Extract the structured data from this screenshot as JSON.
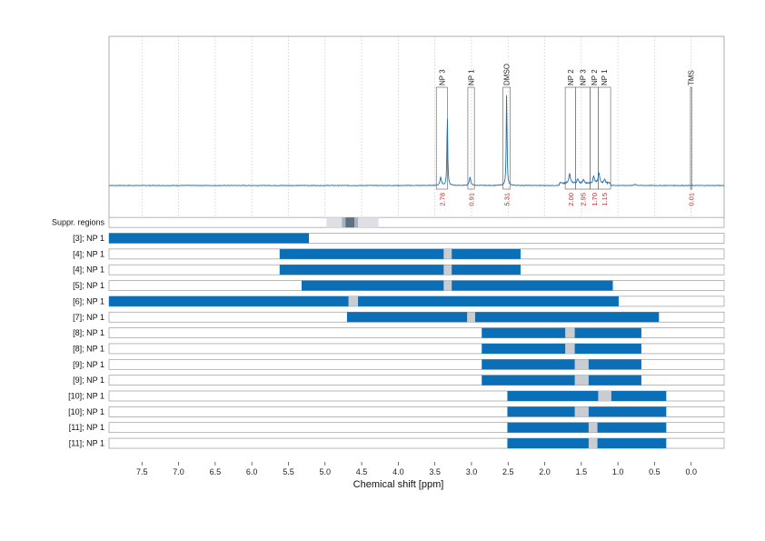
{
  "chart_data": {
    "type": "nmr-spectrum-with-range-bars",
    "xlabel": "Chemical shift [ppm]",
    "xlim": [
      7.95,
      -0.45
    ],
    "x_reversed": true,
    "x_ticks": [
      "7.5",
      "7.0",
      "6.5",
      "6.0",
      "5.5",
      "5.0",
      "4.5",
      "4.0",
      "3.5",
      "3.0",
      "2.5",
      "2.0",
      "1.5",
      "1.0",
      "0.5",
      "0.0"
    ],
    "x_tick_values": [
      7.5,
      7.0,
      6.5,
      6.0,
      5.5,
      5.0,
      4.5,
      4.0,
      3.5,
      3.0,
      2.5,
      2.0,
      1.5,
      1.0,
      0.5,
      0.0
    ],
    "grid": true,
    "colors": {
      "spectrum": "#1f6eb0",
      "bar": "#0b6fb8",
      "suppressed": "#c9ccd1",
      "integral": "#d9201f",
      "frame": "#9a9a9a"
    },
    "spectrum_peaks": [
      {
        "ppm": 3.33,
        "height": 0.55
      },
      {
        "ppm": 3.42,
        "height": 0.06
      },
      {
        "ppm": 3.02,
        "height": 0.06
      },
      {
        "ppm": 2.52,
        "height": 0.73
      },
      {
        "ppm": 1.66,
        "height": 0.07
      },
      {
        "ppm": 1.55,
        "height": 0.03
      },
      {
        "ppm": 1.47,
        "height": 0.03
      },
      {
        "ppm": 1.33,
        "height": 0.05
      },
      {
        "ppm": 1.26,
        "height": 0.08
      },
      {
        "ppm": 1.18,
        "height": 0.03
      },
      {
        "ppm": 0.76,
        "height": 0.01
      }
    ],
    "peak_annotations": [
      {
        "label": "NP 3",
        "ppm_start": 3.48,
        "ppm_end": 3.33,
        "integral": "2.78"
      },
      {
        "label": "NP 1",
        "ppm_start": 3.05,
        "ppm_end": 2.96,
        "integral": "0.91"
      },
      {
        "label": "DMSO",
        "ppm_start": 2.57,
        "ppm_end": 2.47,
        "integral": "5.31"
      },
      {
        "label": "NP 2",
        "ppm_start": 1.72,
        "ppm_end": 1.58,
        "integral": "2.00"
      },
      {
        "label": "NP 3",
        "ppm_start": 1.58,
        "ppm_end": 1.38,
        "integral": "2.95"
      },
      {
        "label": "NP 2",
        "ppm_start": 1.38,
        "ppm_end": 1.27,
        "integral": "1.70"
      },
      {
        "label": "NP 1",
        "ppm_start": 1.27,
        "ppm_end": 1.1,
        "integral": "1.15"
      },
      {
        "label": "TMS",
        "ppm_start": 0.01,
        "ppm_end": -0.01,
        "integral": "0.01"
      }
    ],
    "suppressed_regions": {
      "label": "Suppr. regions",
      "outer": [
        4.98,
        4.27
      ],
      "inner": [
        4.77,
        4.55
      ],
      "core": [
        4.72,
        4.6
      ]
    },
    "rows": [
      {
        "label": "[3]; NP 1",
        "range": [
          7.95,
          5.22
        ],
        "gaps": []
      },
      {
        "label": "[4]; NP 1",
        "range": [
          5.62,
          2.33
        ],
        "gaps": [
          [
            3.38,
            3.27
          ]
        ]
      },
      {
        "label": "[4]; NP 1",
        "range": [
          5.62,
          2.33
        ],
        "gaps": [
          [
            3.38,
            3.27
          ]
        ]
      },
      {
        "label": "[5]; NP 1",
        "range": [
          5.32,
          1.07
        ],
        "gaps": [
          [
            3.38,
            3.27
          ]
        ]
      },
      {
        "label": "[6]; NP 1",
        "range": [
          7.95,
          0.99
        ],
        "gaps": [
          [
            4.68,
            4.55
          ]
        ]
      },
      {
        "label": "[7]; NP 1",
        "range": [
          4.7,
          0.44
        ],
        "gaps": [
          [
            3.06,
            2.95
          ]
        ]
      },
      {
        "label": "[8]; NP 1",
        "range": [
          2.86,
          0.68
        ],
        "gaps": [
          [
            1.72,
            1.59
          ]
        ]
      },
      {
        "label": "[8]; NP 1",
        "range": [
          2.86,
          0.68
        ],
        "gaps": [
          [
            1.72,
            1.59
          ]
        ]
      },
      {
        "label": "[9]; NP 1",
        "range": [
          2.86,
          0.68
        ],
        "gaps": [
          [
            1.59,
            1.4
          ]
        ]
      },
      {
        "label": "[9]; NP 1",
        "range": [
          2.86,
          0.68
        ],
        "gaps": [
          [
            1.59,
            1.4
          ]
        ]
      },
      {
        "label": "[10]; NP 1",
        "range": [
          2.51,
          0.34
        ],
        "gaps": [
          [
            1.27,
            1.09
          ]
        ]
      },
      {
        "label": "[10]; NP 1",
        "range": [
          2.51,
          0.34
        ],
        "gaps": [
          [
            1.59,
            1.4
          ]
        ]
      },
      {
        "label": "[11]; NP 1",
        "range": [
          2.51,
          0.34
        ],
        "gaps": [
          [
            1.4,
            1.28
          ]
        ]
      },
      {
        "label": "[11]; NP 1",
        "range": [
          2.51,
          0.34
        ],
        "gaps": [
          [
            1.4,
            1.28
          ]
        ]
      }
    ]
  }
}
